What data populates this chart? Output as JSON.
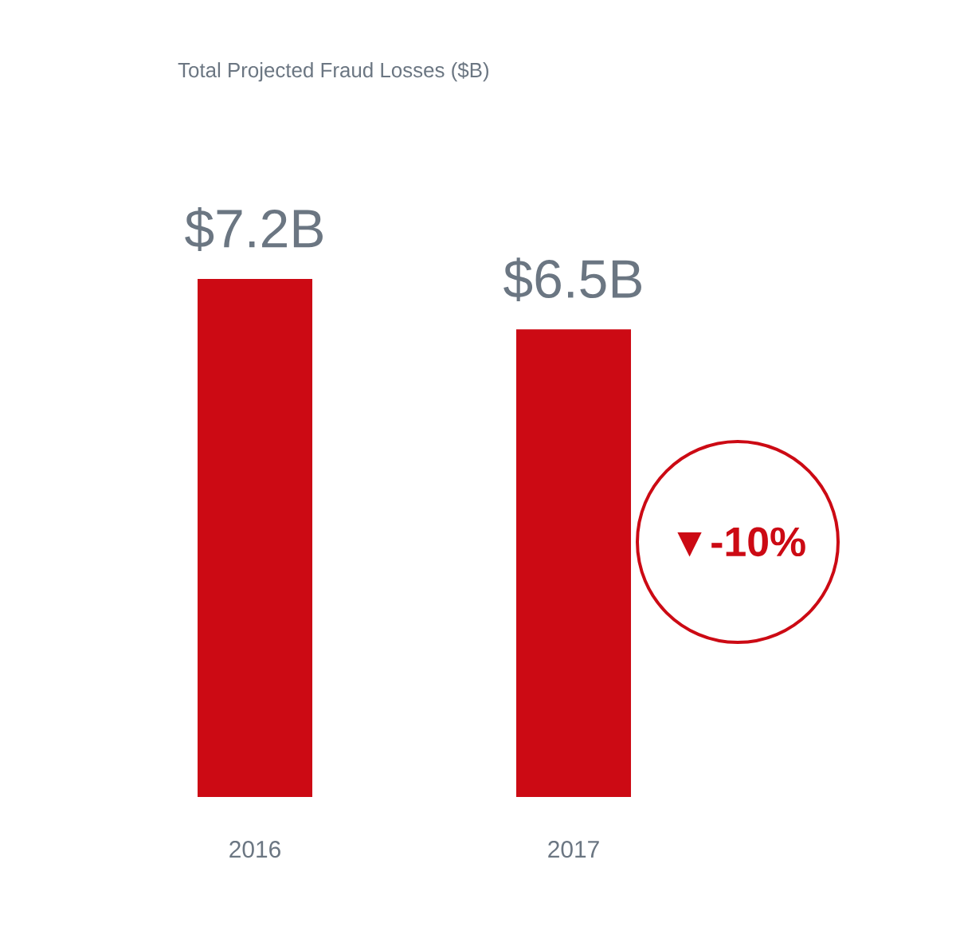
{
  "chart_data": {
    "type": "bar",
    "title": "Total Projected Fraud Losses ($B)",
    "categories": [
      "2016",
      "2017"
    ],
    "values": [
      7.2,
      6.5
    ],
    "value_labels": [
      "$7.2B",
      "$6.5B"
    ],
    "color": "#cc0a14",
    "annotations": [
      "▼-10%"
    ]
  }
}
